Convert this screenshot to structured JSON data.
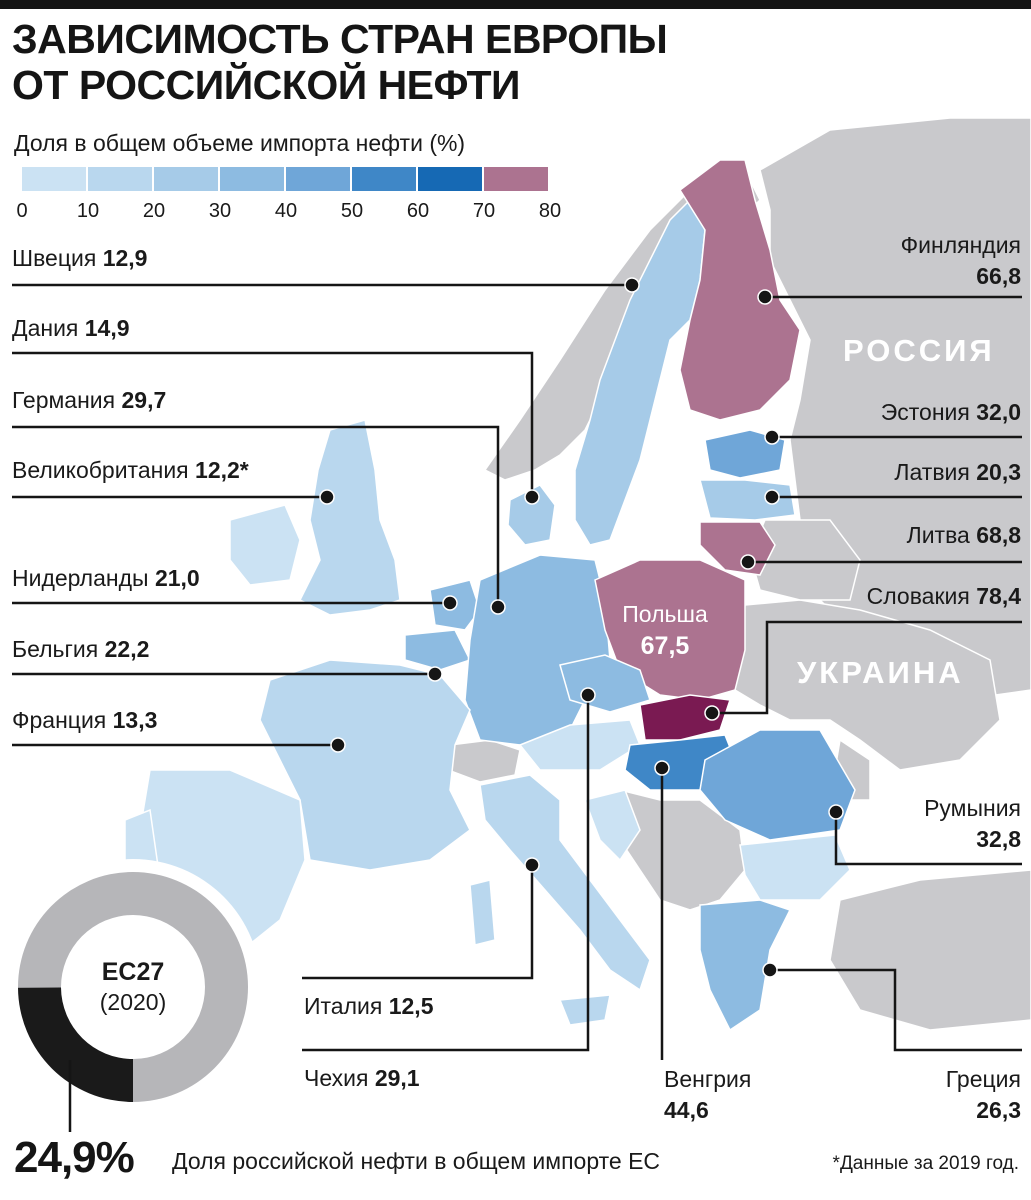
{
  "title_lines": [
    "ЗАВИСИМОСТЬ СТРАН ЕВРОПЫ",
    "ОТ РОССИЙСКОЙ НЕФТИ"
  ],
  "legend": {
    "title": "Доля в общем объеме импорта нефти (%)",
    "ticks": [
      "0",
      "10",
      "20",
      "30",
      "40",
      "50",
      "60",
      "70",
      "80"
    ],
    "colors": [
      "#cbe2f3",
      "#b9d7ee",
      "#a6cbe8",
      "#8dbbe1",
      "#6fa6d8",
      "#3f87c7",
      "#1669b4",
      "#ac7390",
      "#7a1a52"
    ]
  },
  "colors": {
    "background_sea": "#ffffff",
    "land_other": "#c9c9cc",
    "russia_ukraine": "#c7c7ca",
    "leader": "#151515",
    "donut_russia": "#1a1a1a",
    "donut_other": "#b6b6b9"
  },
  "countries": {
    "sweden": {
      "name": "Швеция",
      "value": "12,9"
    },
    "denmark": {
      "name": "Дания",
      "value": "14,9"
    },
    "germany": {
      "name": "Германия",
      "value": "29,7"
    },
    "uk": {
      "name": "Великобритания",
      "value": "12,2*"
    },
    "netherlands": {
      "name": "Нидерланды",
      "value": "21,0"
    },
    "belgium": {
      "name": "Бельгия",
      "value": "22,2"
    },
    "france": {
      "name": "Франция",
      "value": "13,3"
    },
    "italy": {
      "name": "Италия",
      "value": "12,5"
    },
    "czechia": {
      "name": "Чехия",
      "value": "29,1"
    },
    "hungary": {
      "name": "Венгрия",
      "value": "44,6"
    },
    "greece": {
      "name": "Греция",
      "value": "26,3"
    },
    "romania": {
      "name": "Румыния",
      "value": "32,8"
    },
    "slovakia": {
      "name": "Словакия",
      "value": "78,4"
    },
    "lithuania": {
      "name": "Литва",
      "value": "68,8"
    },
    "latvia": {
      "name": "Латвия",
      "value": "20,3"
    },
    "estonia": {
      "name": "Эстония",
      "value": "32,0"
    },
    "finland": {
      "name": "Финляндия",
      "value": "66,8"
    },
    "poland": {
      "name": "Польша",
      "value": "67,5"
    }
  },
  "regions": {
    "russia": "РОССИЯ",
    "ukraine": "УКРАИНА"
  },
  "eu": {
    "label": "ЕС27",
    "year": "(2020)",
    "share": "24,9%",
    "share_value": 24.9,
    "caption": "Доля российской нефти в общем импорте ЕС"
  },
  "footnote": "*Данные за 2019 год."
}
